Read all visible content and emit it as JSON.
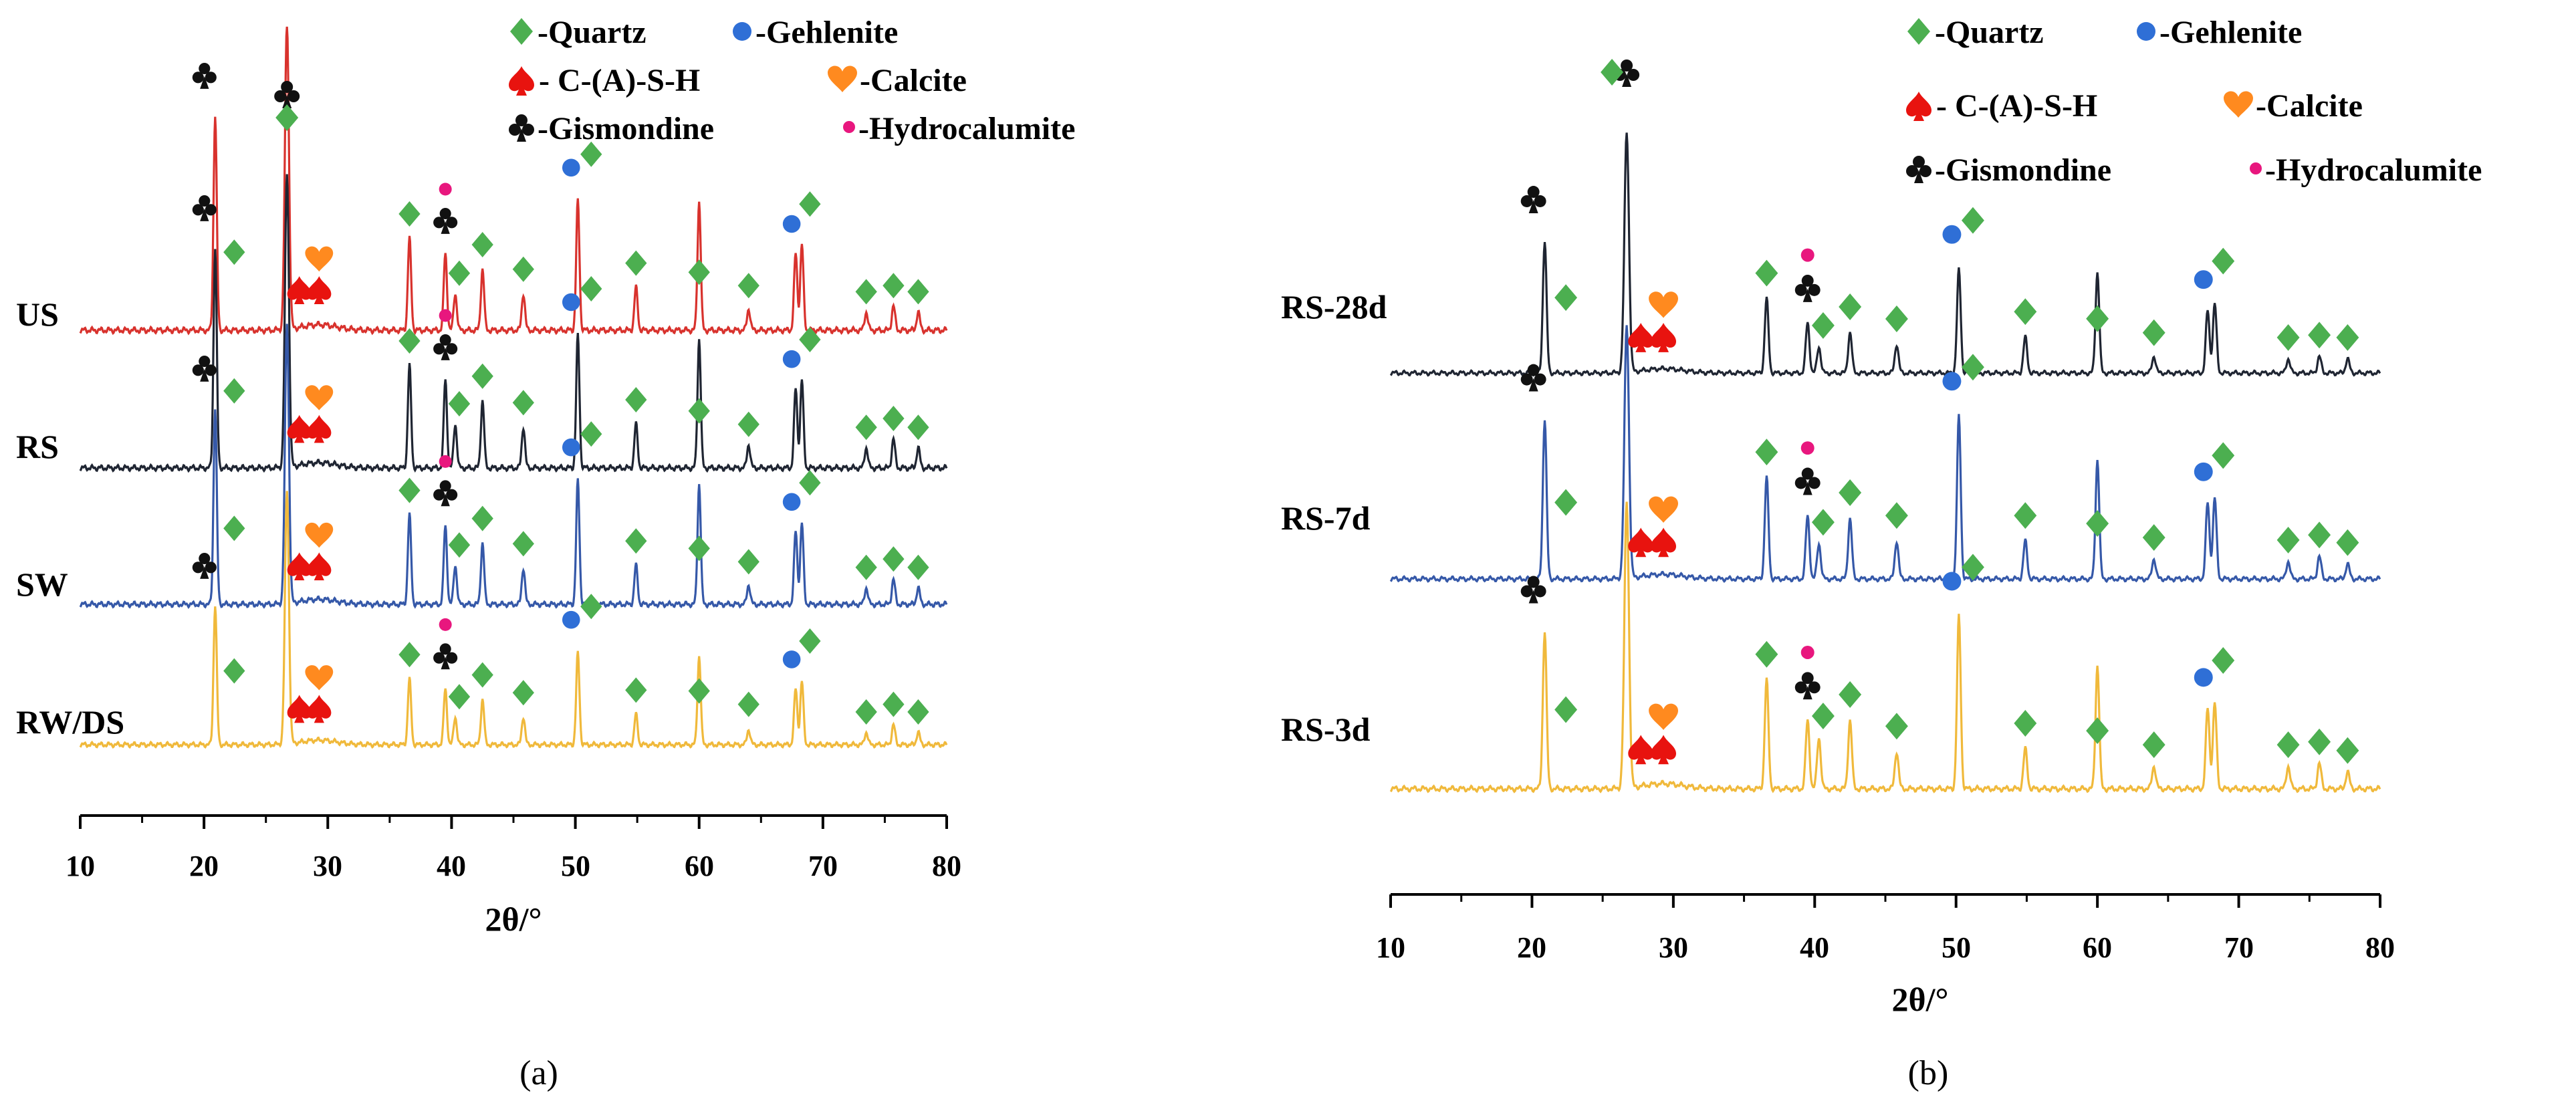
{
  "chart_data": [
    {
      "type": "line",
      "panel": "a",
      "caption": "(a)",
      "xlabel": "2θ/°",
      "ylabel": "",
      "xlim": [
        10,
        80
      ],
      "xticks": [
        10,
        20,
        30,
        40,
        50,
        60,
        70,
        80
      ],
      "legend": {
        "placement": "top",
        "rows": [
          [
            {
              "symbol": "diamond",
              "label": "-Quartz",
              "color": "#4caf50"
            },
            {
              "symbol": "circle",
              "label": "-Gehlenite",
              "color": "#2f6fd6"
            }
          ],
          [
            {
              "symbol": "spade",
              "label": "- C-(A)-S-H",
              "color": "#e8130f"
            },
            {
              "symbol": "heart",
              "label": "-Calcite",
              "color": "#ff8a1f"
            }
          ],
          [
            {
              "symbol": "club",
              "label": "-Gismondine",
              "color": "#111111"
            },
            {
              "symbol": "dot",
              "label": "-Hydrocalumite",
              "color": "#e8177e"
            }
          ]
        ]
      },
      "series": [
        {
          "name": "US",
          "color": "#d8322d",
          "peak_heights": {
            "20.9": 0.7,
            "26.7": 1.0,
            "36.6": 0.3,
            "39.5": 0.25,
            "40.3": 0.12,
            "42.5": 0.2,
            "45.8": 0.12,
            "50.2": 0.42,
            "54.9": 0.14,
            "60.0": 0.42,
            "64.0": 0.07,
            "67.8": 0.25,
            "68.3": 0.28,
            "73.5": 0.06,
            "75.7": 0.08,
            "77.7": 0.06
          }
        },
        {
          "name": "RS",
          "color": "#1f2532",
          "peak_heights": {
            "20.9": 0.75,
            "26.7": 1.0,
            "36.6": 0.35,
            "39.5": 0.3,
            "40.3": 0.15,
            "42.5": 0.23,
            "45.8": 0.14,
            "50.2": 0.45,
            "54.9": 0.15,
            "60.0": 0.44,
            "64.0": 0.08,
            "67.8": 0.27,
            "68.3": 0.3,
            "73.5": 0.07,
            "75.7": 0.1,
            "77.7": 0.07
          }
        },
        {
          "name": "SW",
          "color": "#3558a8",
          "peak_heights": {
            "20.9": 0.7,
            "26.7": 1.0,
            "36.6": 0.32,
            "39.5": 0.28,
            "40.3": 0.14,
            "42.5": 0.22,
            "45.8": 0.13,
            "50.2": 0.44,
            "54.9": 0.14,
            "60.0": 0.43,
            "64.0": 0.07,
            "67.8": 0.26,
            "68.3": 0.29,
            "73.5": 0.06,
            "75.7": 0.09,
            "77.7": 0.06
          }
        },
        {
          "name": "RW/DS",
          "color": "#f0b93b",
          "peak_heights": {
            "20.9": 0.55,
            "26.7": 1.0,
            "36.6": 0.26,
            "39.5": 0.22,
            "40.3": 0.11,
            "42.5": 0.18,
            "45.8": 0.11,
            "50.2": 0.36,
            "54.9": 0.12,
            "60.0": 0.35,
            "64.0": 0.06,
            "67.8": 0.22,
            "68.3": 0.25,
            "73.5": 0.05,
            "75.7": 0.08,
            "77.7": 0.05
          }
        }
      ]
    },
    {
      "type": "line",
      "panel": "b",
      "caption": "(b)",
      "xlabel": "2θ/°",
      "ylabel": "",
      "xlim": [
        10,
        80
      ],
      "xticks": [
        10,
        20,
        30,
        40,
        50,
        60,
        70,
        80
      ],
      "legend": {
        "placement": "top",
        "rows": [
          [
            {
              "symbol": "diamond",
              "label": "-Quartz",
              "color": "#4caf50"
            },
            {
              "symbol": "circle",
              "label": "-Gehlenite",
              "color": "#2f6fd6"
            }
          ],
          [
            {
              "symbol": "spade",
              "label": "- C-(A)-S-H",
              "color": "#e8130f"
            },
            {
              "symbol": "heart",
              "label": "-Calcite",
              "color": "#ff8a1f"
            }
          ],
          [
            {
              "symbol": "club",
              "label": "-Gismondine",
              "color": "#111111"
            },
            {
              "symbol": "dot",
              "label": "-Hydrocalumite",
              "color": "#e8177e"
            }
          ]
        ]
      },
      "series": [
        {
          "name": "RS-28d",
          "color": "#1f2532",
          "peak_heights": {
            "20.9": 0.55,
            "26.7": 1.0,
            "36.6": 0.31,
            "39.5": 0.21,
            "40.3": 0.11,
            "42.5": 0.17,
            "45.8": 0.12,
            "50.2": 0.43,
            "54.9": 0.15,
            "60.0": 0.42,
            "64.0": 0.07,
            "67.8": 0.26,
            "68.3": 0.29,
            "73.5": 0.06,
            "75.7": 0.07,
            "77.7": 0.06
          }
        },
        {
          "name": "RS-7d",
          "color": "#3558a8",
          "peak_heights": {
            "20.9": 0.63,
            "26.7": 1.0,
            "36.6": 0.4,
            "39.5": 0.25,
            "40.3": 0.14,
            "42.5": 0.24,
            "45.8": 0.15,
            "50.2": 0.64,
            "54.9": 0.15,
            "60.0": 0.47,
            "64.0": 0.08,
            "67.8": 0.3,
            "68.3": 0.32,
            "73.5": 0.07,
            "75.7": 0.09,
            "77.7": 0.06
          }
        },
        {
          "name": "RS-3d",
          "color": "#f0b93b",
          "peak_heights": {
            "20.9": 0.55,
            "26.7": 1.0,
            "36.6": 0.38,
            "39.5": 0.24,
            "40.3": 0.18,
            "42.5": 0.24,
            "45.8": 0.13,
            "50.2": 0.6,
            "54.9": 0.14,
            "60.0": 0.43,
            "64.0": 0.08,
            "67.8": 0.28,
            "68.3": 0.3,
            "73.5": 0.08,
            "75.7": 0.09,
            "77.7": 0.06
          }
        }
      ]
    }
  ]
}
